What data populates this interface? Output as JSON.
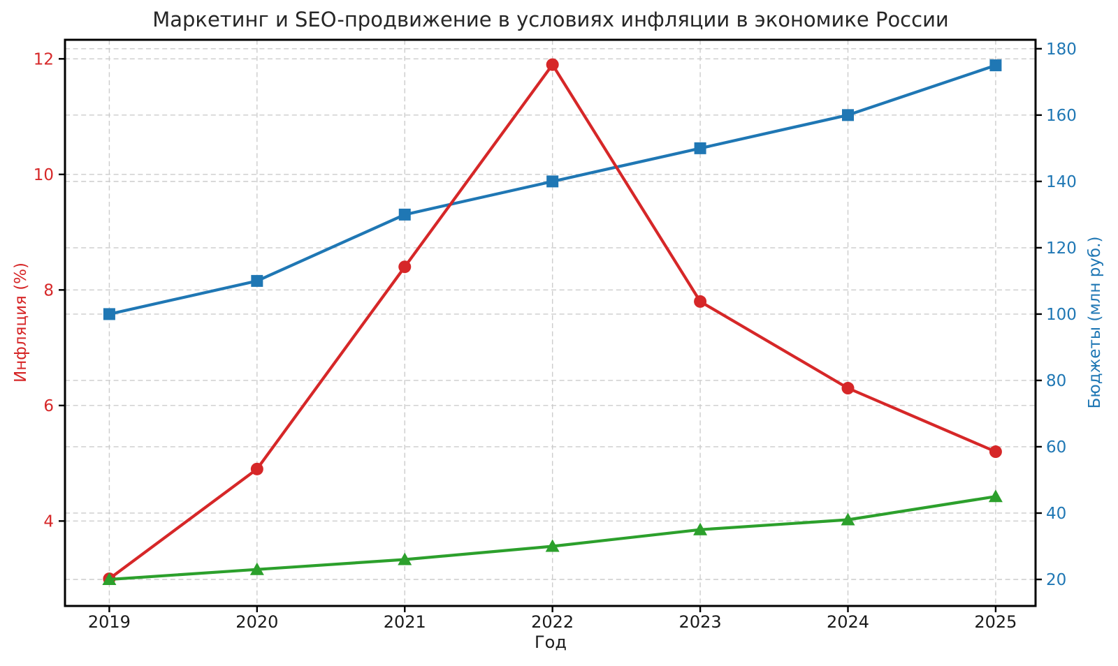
{
  "chart_data": {
    "type": "line",
    "title": "Маркетинг и SEO-продвижение в условиях инфляции в экономике России",
    "xlabel": "Год",
    "x": [
      2019,
      2020,
      2021,
      2022,
      2023,
      2024,
      2025
    ],
    "x_tick_labels": [
      "2019",
      "2020",
      "2021",
      "2022",
      "2023",
      "2024",
      "2025"
    ],
    "xlim": [
      2018.7,
      2025.27
    ],
    "grid": true,
    "legend": "none",
    "left_axis": {
      "label": "Инфляция (%)",
      "color": "#d62728",
      "ticks": [
        4,
        6,
        8,
        10,
        12
      ],
      "ylim": [
        2.53,
        12.33
      ]
    },
    "right_axis": {
      "label": "Бюджеты (млн руб.)",
      "color": "#1f77b4",
      "ticks": [
        20,
        40,
        60,
        80,
        100,
        120,
        140,
        160,
        180
      ],
      "ylim": [
        12.0,
        182.7
      ]
    },
    "series": [
      {
        "name": "budgets-blue",
        "axis": "right",
        "marker": "square",
        "color": "#1f77b4",
        "values": [
          100,
          110,
          130,
          140,
          150,
          160,
          175
        ]
      },
      {
        "name": "inflation-red",
        "axis": "left",
        "marker": "circle",
        "color": "#d62728",
        "values": [
          3.0,
          4.9,
          8.4,
          11.9,
          7.8,
          6.3,
          5.2
        ]
      },
      {
        "name": "green-unlabeled",
        "axis": "right",
        "marker": "triangle-up",
        "color": "#2ca02c",
        "values": [
          20,
          23,
          26,
          30,
          35,
          38,
          45
        ]
      }
    ],
    "style": {
      "grid_color": "#cccccc",
      "spine_color": "#000000",
      "tick_label_color_bottom": "#1a1a1a"
    }
  }
}
